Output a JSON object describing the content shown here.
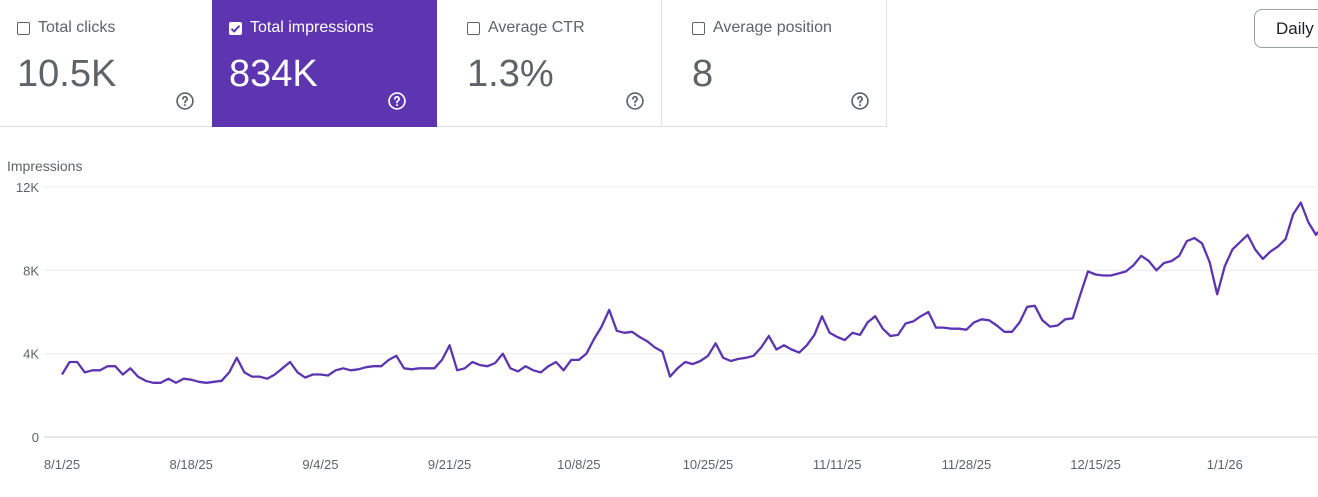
{
  "metrics": [
    {
      "label": "Total clicks",
      "value": "10.5K",
      "checked": false
    },
    {
      "label": "Total impressions",
      "value": "834K",
      "checked": true
    },
    {
      "label": "Average CTR",
      "value": "1.3%",
      "checked": false
    },
    {
      "label": "Average position",
      "value": "8",
      "checked": false
    }
  ],
  "granularity_label": "Daily",
  "colors": {
    "accent": "#5e35b1",
    "line": "#5e35b1",
    "grid": "#ebebeb"
  },
  "chart_data": {
    "type": "line",
    "title": "",
    "ylabel": "Impressions",
    "xlabel": "",
    "ylim": [
      0,
      12000
    ],
    "yticks": [
      0,
      4000,
      8000,
      12000
    ],
    "ytick_labels": [
      "0",
      "4K",
      "8K",
      "12K"
    ],
    "xtick_labels": [
      "8/1/25",
      "8/18/25",
      "9/4/25",
      "9/21/25",
      "10/8/25",
      "10/25/25",
      "11/11/25",
      "11/28/25",
      "12/15/25",
      "1/1/26"
    ],
    "x_start": "8/1/25",
    "series": [
      {
        "name": "Impressions",
        "values": [
          3000,
          3600,
          3600,
          3100,
          3200,
          3200,
          3400,
          3400,
          3000,
          3300,
          2900,
          2700,
          2600,
          2600,
          2800,
          2600,
          2800,
          2750,
          2650,
          2600,
          2650,
          2700,
          3100,
          3800,
          3100,
          2900,
          2900,
          2800,
          3000,
          3300,
          3600,
          3100,
          2850,
          3000,
          3000,
          2950,
          3200,
          3300,
          3200,
          3250,
          3350,
          3400,
          3400,
          3700,
          3900,
          3300,
          3250,
          3300,
          3300,
          3300,
          3700,
          4400,
          3200,
          3300,
          3600,
          3450,
          3400,
          3550,
          4000,
          3300,
          3150,
          3400,
          3200,
          3100,
          3400,
          3600,
          3200,
          3700,
          3700,
          4000,
          4700,
          5300,
          6100,
          5100,
          5000,
          5050,
          4800,
          4600,
          4300,
          4100,
          2900,
          3300,
          3600,
          3500,
          3650,
          3900,
          4500,
          3800,
          3650,
          3750,
          3800,
          3900,
          4300,
          4850,
          4200,
          4400,
          4200,
          4050,
          4400,
          4900,
          5800,
          5000,
          4800,
          4650,
          5000,
          4900,
          5500,
          5800,
          5200,
          4850,
          4900,
          5450,
          5550,
          5800,
          6000,
          5250,
          5250,
          5200,
          5200,
          5150,
          5500,
          5650,
          5600,
          5350,
          5050,
          5050,
          5500,
          6250,
          6300,
          5600,
          5300,
          5350,
          5650,
          5700,
          6850,
          7950,
          7800,
          7750,
          7750,
          7850,
          7950,
          8250,
          8700,
          8450,
          8000,
          8350,
          8450,
          8700,
          9400,
          9550,
          9300,
          8400,
          6850,
          8200,
          9000,
          9350,
          9700,
          9000,
          8550,
          8900,
          9150,
          9500,
          10700,
          11250,
          10300,
          9700,
          9850
        ]
      }
    ]
  }
}
